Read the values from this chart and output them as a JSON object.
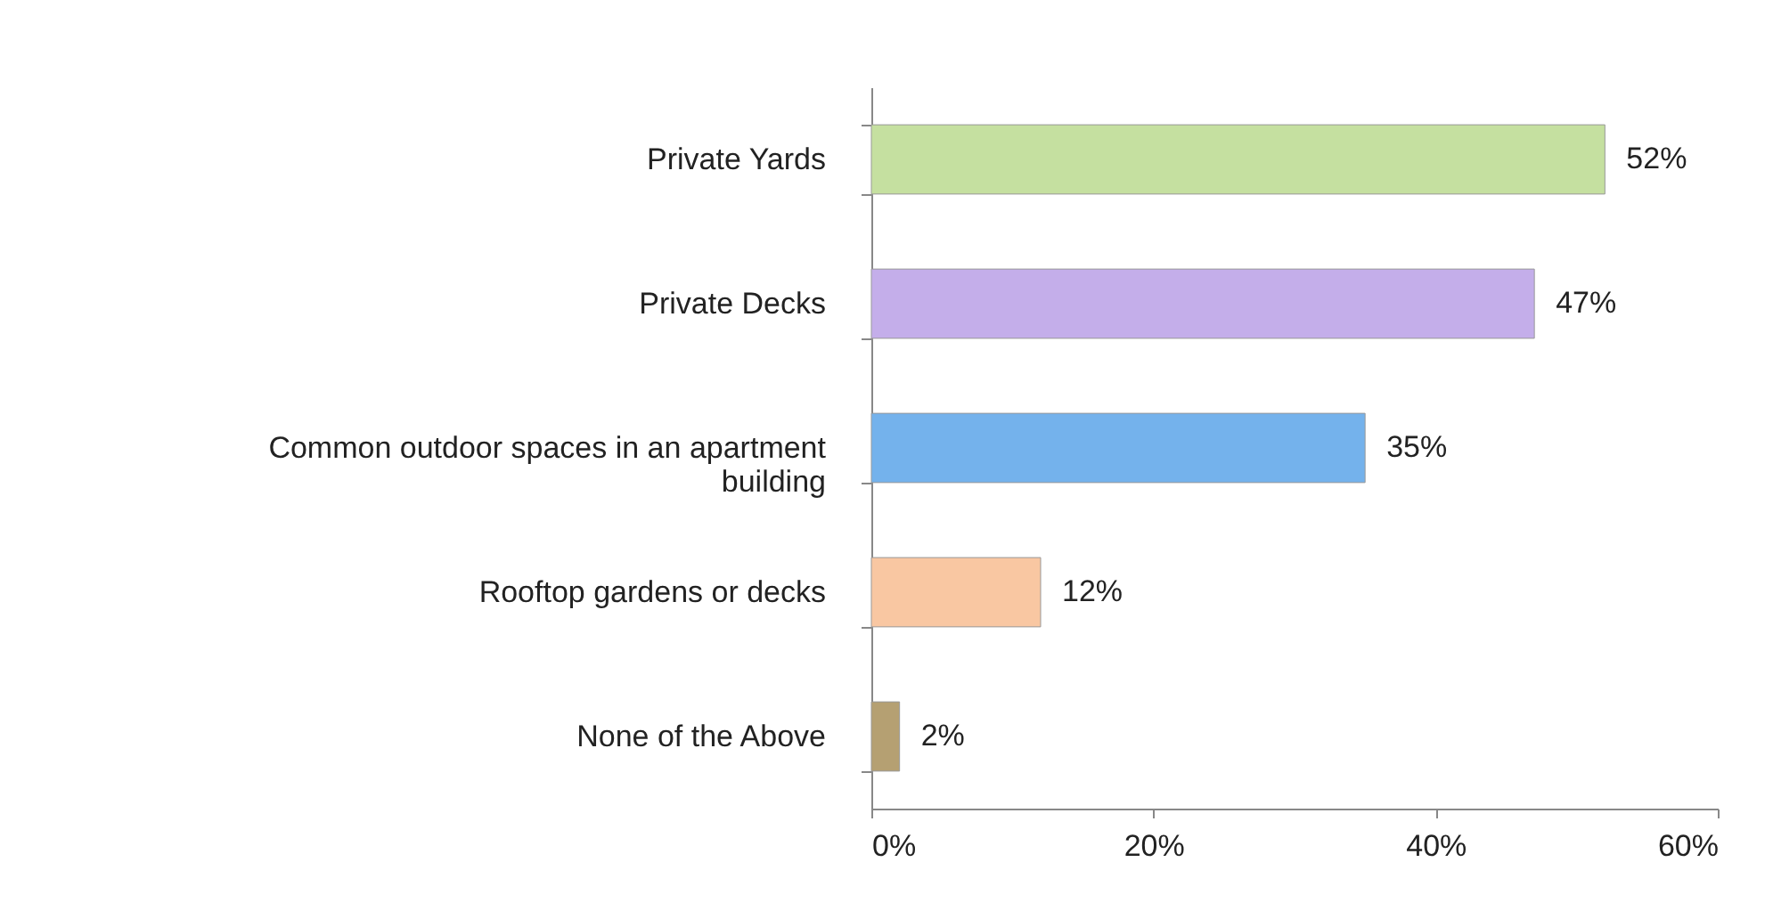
{
  "chart_data": {
    "type": "bar",
    "orientation": "horizontal",
    "categories": [
      "Private Yards",
      "Private Decks",
      "Common outdoor spaces in an apartment building",
      "Rooftop gardens or decks",
      "None of the Above"
    ],
    "values": [
      52,
      47,
      35,
      12,
      2
    ],
    "colors": [
      "#c5e0a0",
      "#c4aeea",
      "#74b2ec",
      "#f9c7a2",
      "#b5a072"
    ],
    "value_labels": [
      "52%",
      "47%",
      "35%",
      "12%",
      "2%"
    ],
    "xlim": [
      0,
      60
    ],
    "xticks": [
      {
        "value": 0,
        "label": "0%"
      },
      {
        "value": 20,
        "label": "20%"
      },
      {
        "value": 40,
        "label": "40%"
      },
      {
        "value": 60,
        "label": "60%"
      }
    ],
    "grid": false
  }
}
